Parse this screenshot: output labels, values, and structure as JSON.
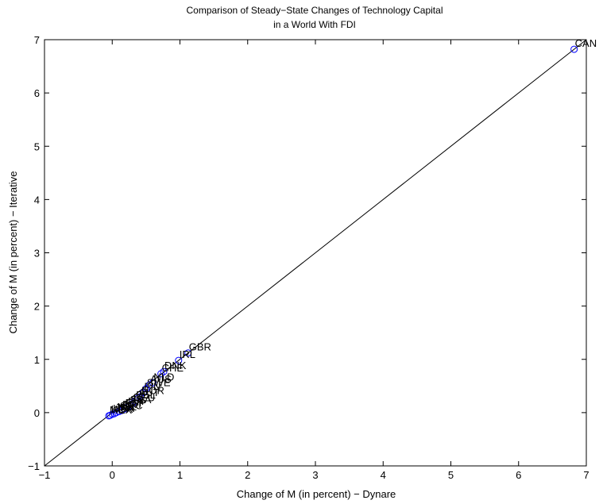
{
  "chart_data": {
    "type": "scatter",
    "title": "Comparison of Steady−State Changes of Technology Capital",
    "subtitle": "in a World With FDI",
    "xlabel": "Change of M (in percent) − Dynare",
    "ylabel": "Change of M (in percent) − Iterative",
    "xlim": [
      -1,
      7
    ],
    "ylim": [
      -1,
      7
    ],
    "xticks": [
      -1,
      0,
      1,
      2,
      3,
      4,
      5,
      6,
      7
    ],
    "yticks": [
      -1,
      0,
      1,
      2,
      3,
      4,
      5,
      6,
      7
    ],
    "xtick_labels": [
      "−1",
      "0",
      "1",
      "2",
      "3",
      "4",
      "5",
      "6",
      "7"
    ],
    "ytick_labels": [
      "−1",
      "0",
      "1",
      "2",
      "3",
      "4",
      "5",
      "6",
      "7"
    ],
    "grid": false,
    "box": true,
    "reference_line": {
      "from": [
        -1,
        -1
      ],
      "to": [
        7,
        7
      ],
      "color": "#000000"
    },
    "marker": "circle-open",
    "marker_color": "#0000ff",
    "points": [
      {
        "x": 6.82,
        "y": 6.82,
        "label": "CAN"
      },
      {
        "x": 1.12,
        "y": 1.12,
        "label": "GBR"
      },
      {
        "x": 0.98,
        "y": 0.98,
        "label": "IRL"
      },
      {
        "x": 0.76,
        "y": 0.77,
        "label": "DNK"
      },
      {
        "x": 0.72,
        "y": 0.73,
        "label": "CHE"
      },
      {
        "x": 0.6,
        "y": 0.56,
        "label": "NLD"
      },
      {
        "x": 0.55,
        "y": 0.52,
        "label": "AUS"
      },
      {
        "x": 0.5,
        "y": 0.45,
        "label": "SWE"
      },
      {
        "x": 0.46,
        "y": 0.38,
        "label": "FIN"
      },
      {
        "x": 0.42,
        "y": 0.3,
        "label": "NOR"
      },
      {
        "x": 0.38,
        "y": 0.27,
        "label": "AUT"
      },
      {
        "x": 0.34,
        "y": 0.22,
        "label": "BEL"
      },
      {
        "x": 0.3,
        "y": 0.17,
        "label": "DEU"
      },
      {
        "x": 0.26,
        "y": 0.13,
        "label": "FRA"
      },
      {
        "x": 0.22,
        "y": 0.1,
        "label": "ITA"
      },
      {
        "x": 0.18,
        "y": 0.07,
        "label": "ESP"
      },
      {
        "x": 0.14,
        "y": 0.04,
        "label": "PRT"
      },
      {
        "x": 0.1,
        "y": 0.02,
        "label": "GRC"
      },
      {
        "x": 0.06,
        "y": 0.0,
        "label": "NZL"
      },
      {
        "x": 0.03,
        "y": -0.02,
        "label": "JPN"
      },
      {
        "x": 0.0,
        "y": -0.03,
        "label": "USA"
      },
      {
        "x": -0.03,
        "y": -0.05,
        "label": "KOR"
      },
      {
        "x": -0.05,
        "y": -0.06,
        "label": "MEX"
      }
    ]
  }
}
